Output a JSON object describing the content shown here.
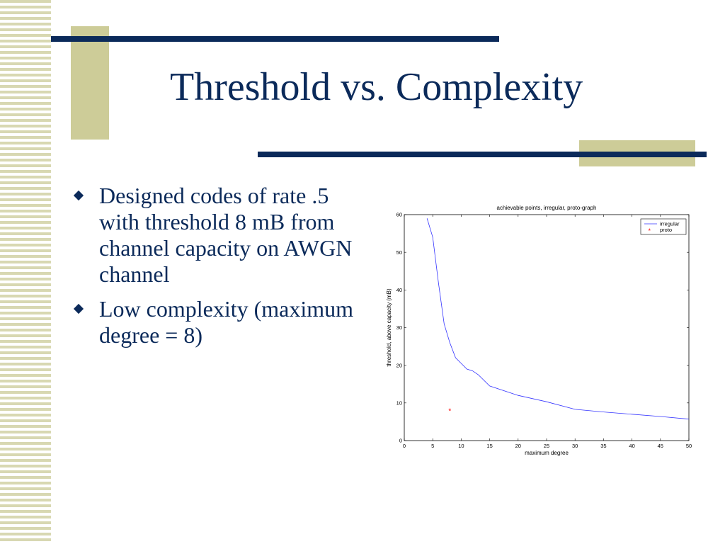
{
  "slide": {
    "title": "Threshold vs. Complexity",
    "bullets": [
      {
        "text": "Designed codes of rate .5 with threshold 8 mB from channel capacity on AWGN channel"
      },
      {
        "text": "Low complexity (maximum degree = 8)"
      }
    ]
  },
  "colors": {
    "accent_navy": "#0b2a5a",
    "accent_tan": "#cdcc98",
    "series_irregular": "#3333ff",
    "series_proto": "#ff0000"
  },
  "chart_data": {
    "type": "line",
    "title": "achievable points, irregular, proto-graph",
    "xlabel": "maximum degree",
    "ylabel": "threshold, above capacity (mB)",
    "xlim": [
      0,
      50
    ],
    "ylim": [
      0,
      60
    ],
    "xticks": [
      0,
      5,
      10,
      15,
      20,
      25,
      30,
      35,
      40,
      45,
      50
    ],
    "yticks": [
      0,
      10,
      20,
      30,
      40,
      50,
      60
    ],
    "grid": false,
    "legend_position": "top-right",
    "series": [
      {
        "name": "irregular",
        "style": "line",
        "x": [
          4,
          5,
          6,
          7,
          8,
          9,
          10,
          11,
          12,
          13,
          15,
          20,
          25,
          30,
          35,
          40,
          45,
          50
        ],
        "y": [
          59,
          54,
          42,
          31,
          26,
          22,
          20.5,
          19,
          18.5,
          17.5,
          14.5,
          12,
          10.3,
          8.3,
          7.6,
          7,
          6.4,
          5.7
        ]
      },
      {
        "name": "proto",
        "style": "marker",
        "marker": "*",
        "x": [
          8
        ],
        "y": [
          8
        ]
      }
    ]
  }
}
